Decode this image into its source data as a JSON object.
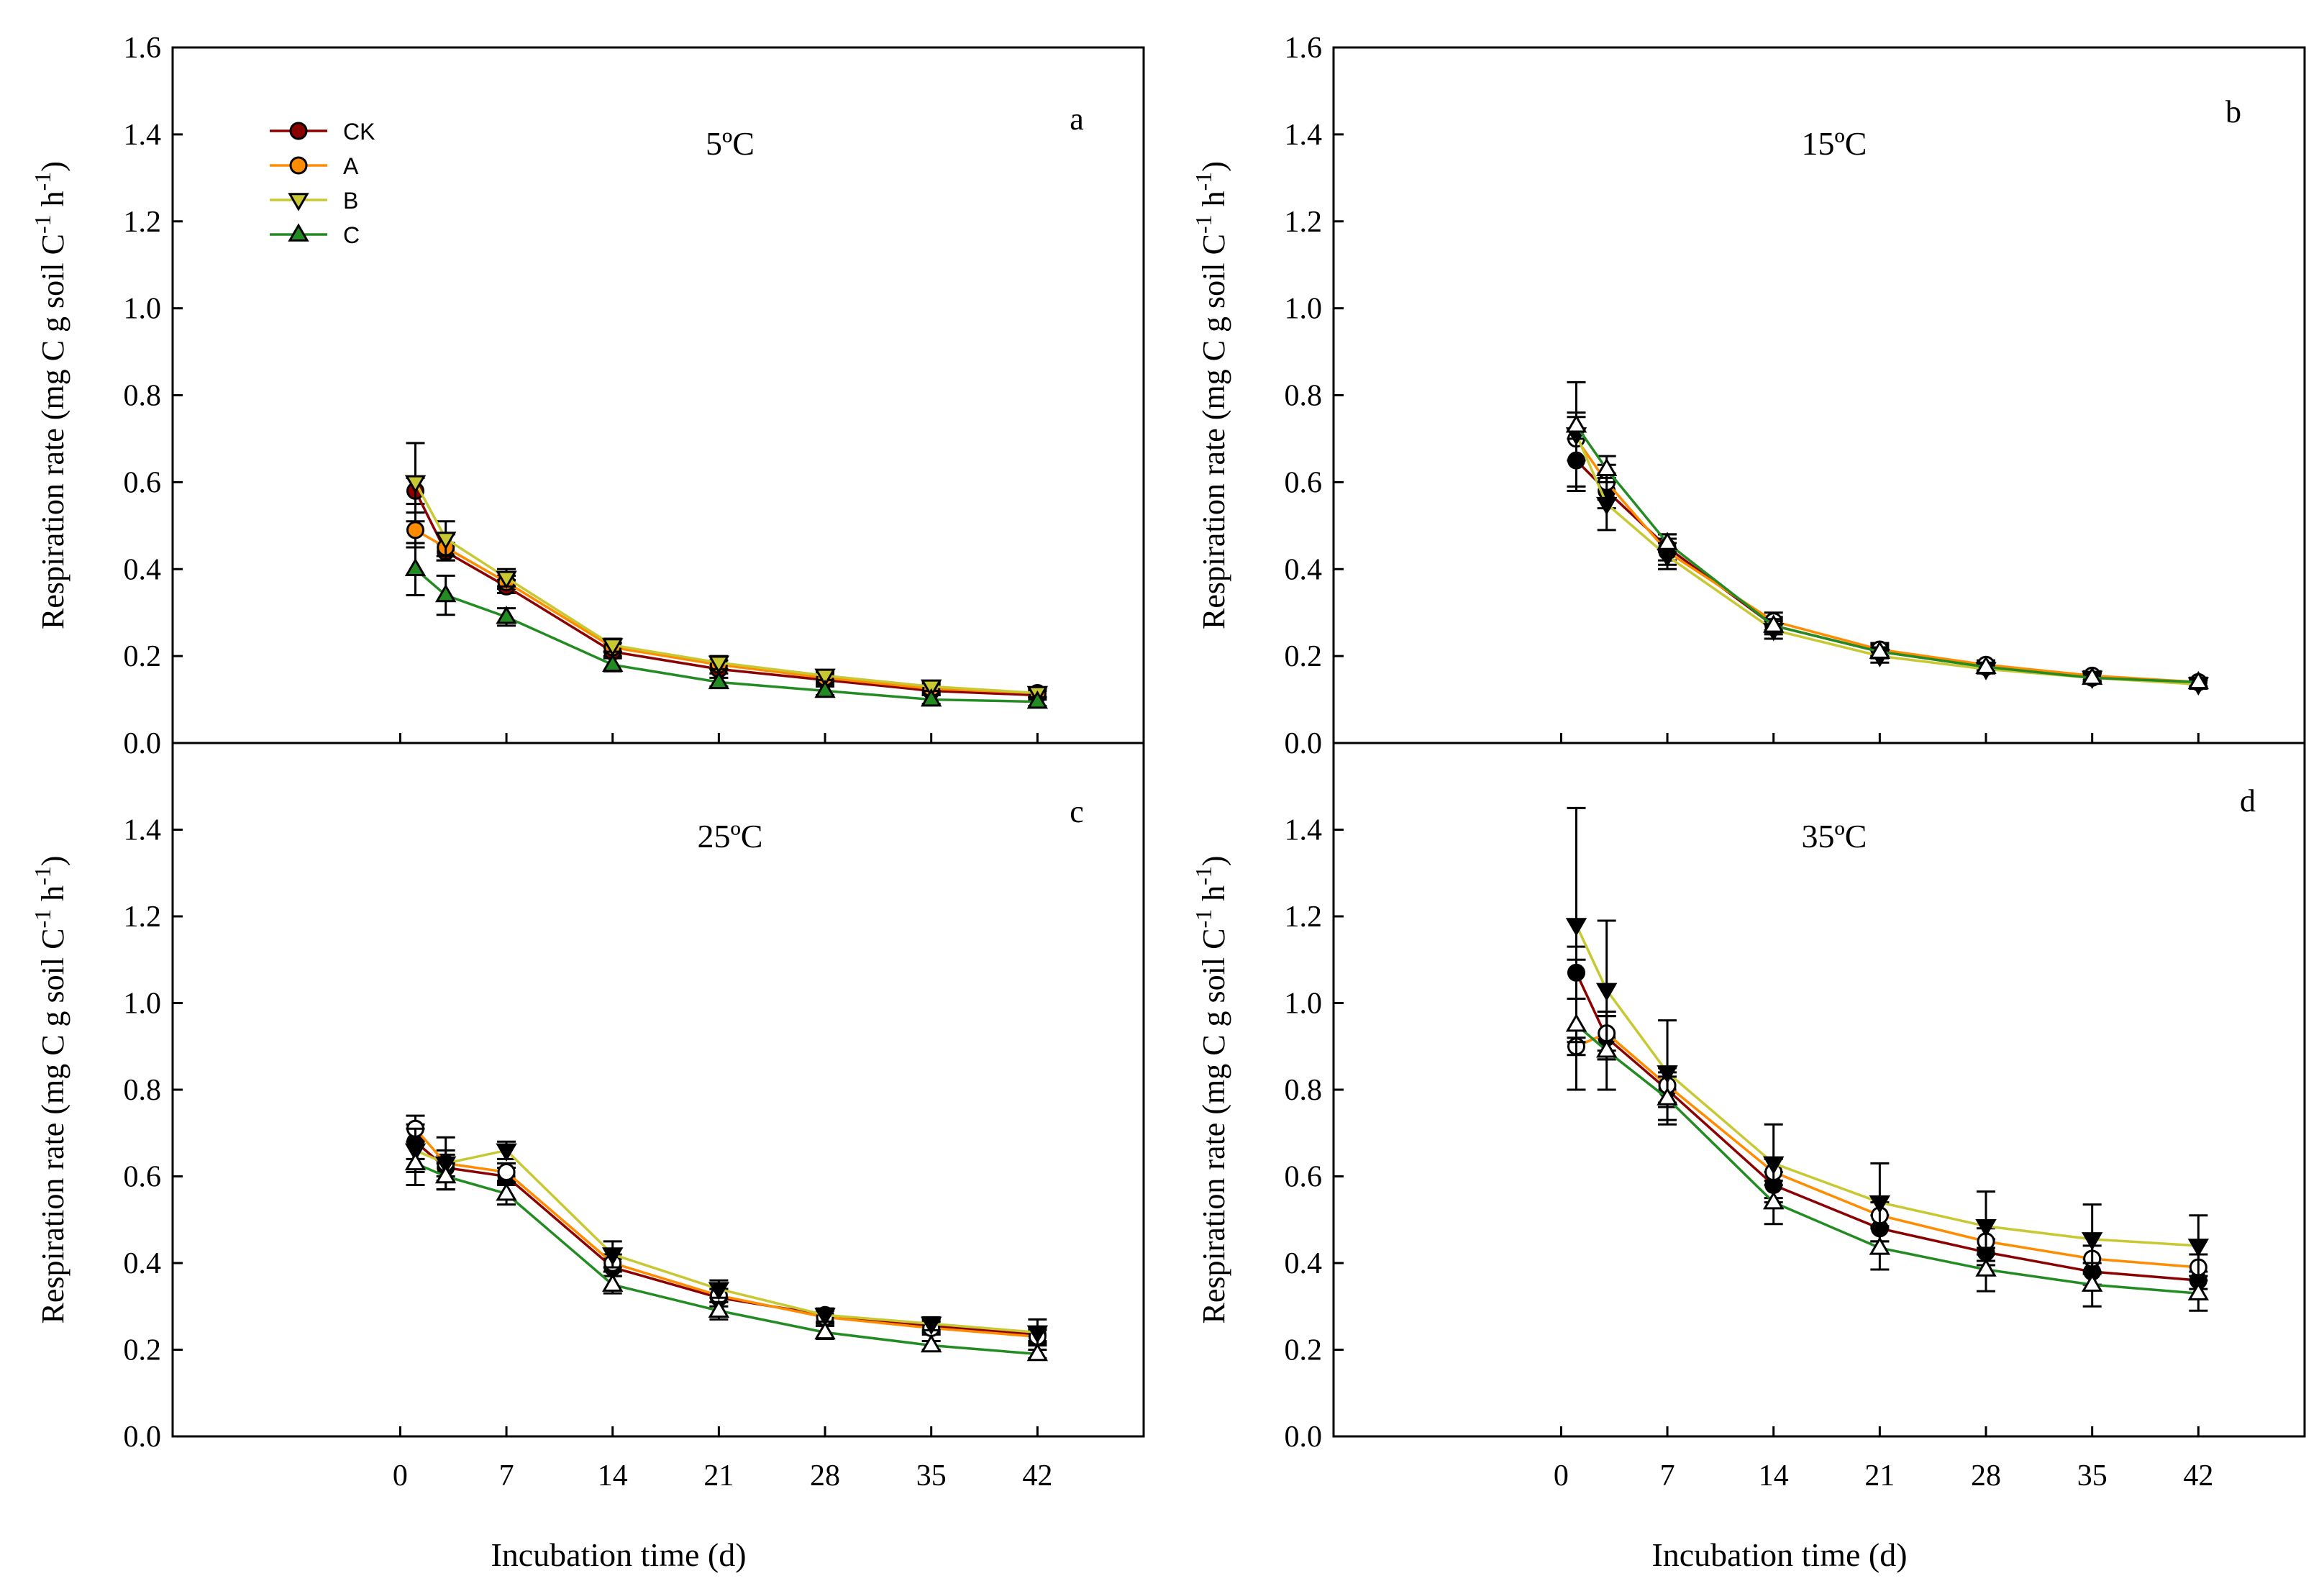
{
  "chart_data": [
    {
      "type": "line",
      "panel": "a",
      "title": "5ºC",
      "xlabel": "Incubation time (d)",
      "ylabel": "Respiration rate (mg C g soil C-1 h-1)",
      "xticks": [
        0,
        7,
        14,
        21,
        28,
        35,
        42
      ],
      "yticks": [
        "0.0",
        "0.2",
        "0.4",
        "0.6",
        "0.8",
        "1.0",
        "1.2",
        "1.4",
        "1.6"
      ],
      "xlim": [
        -15,
        49
      ],
      "ylim": [
        0,
        1.6
      ],
      "legend": "top-left",
      "x": [
        1,
        3,
        7,
        14,
        21,
        28,
        35,
        42
      ],
      "series": [
        {
          "name": "CK",
          "color": "#8b0000",
          "marker": "circle",
          "filled": true,
          "values": [
            0.58,
            0.44,
            0.36,
            0.21,
            0.17,
            0.145,
            0.12,
            0.11
          ],
          "errors": [
            0.03,
            0.02,
            0.015,
            0.01,
            0.01,
            0.01,
            0.01,
            0.01
          ]
        },
        {
          "name": "A",
          "color": "#ff8c00",
          "marker": "circle",
          "filled": true,
          "values": [
            0.49,
            0.45,
            0.37,
            0.22,
            0.18,
            0.15,
            0.125,
            0.115
          ],
          "errors": [
            0.04,
            0.03,
            0.015,
            0.01,
            0.01,
            0.01,
            0.01,
            0.01
          ]
        },
        {
          "name": "B",
          "color": "#c8c832",
          "marker": "triangle-down",
          "filled": true,
          "values": [
            0.6,
            0.47,
            0.38,
            0.225,
            0.185,
            0.155,
            0.13,
            0.115
          ],
          "errors": [
            0.09,
            0.04,
            0.02,
            0.015,
            0.015,
            0.01,
            0.01,
            0.01
          ]
        },
        {
          "name": "C",
          "color": "#228b22",
          "marker": "triangle-up",
          "filled": true,
          "values": [
            0.4,
            0.34,
            0.29,
            0.18,
            0.14,
            0.12,
            0.1,
            0.095
          ],
          "errors": [
            0.06,
            0.045,
            0.02,
            0.015,
            0.01,
            0.01,
            0.01,
            0.01
          ]
        }
      ]
    },
    {
      "type": "line",
      "panel": "b",
      "title": "15ºC",
      "xlabel": "Incubation time (d)",
      "ylabel": "Respiration rate (mg C g soil C-1 h-1)",
      "xticks": [
        0,
        7,
        14,
        21,
        28,
        35,
        42
      ],
      "yticks": [
        "0.0",
        "0.2",
        "0.4",
        "0.6",
        "0.8",
        "1.0",
        "1.2",
        "1.4",
        "1.6"
      ],
      "xlim": [
        -15,
        49
      ],
      "ylim": [
        0,
        1.6
      ],
      "x": [
        1,
        3,
        7,
        14,
        21,
        28,
        35,
        42
      ],
      "series": [
        {
          "name": "CK",
          "color": "#8b0000",
          "marker": "circle",
          "filled": true,
          "values": [
            0.65,
            0.58,
            0.45,
            0.27,
            0.21,
            0.175,
            0.15,
            0.14
          ],
          "errors": [
            0.07,
            0.04,
            0.03,
            0.02,
            0.015,
            0.01,
            0.01,
            0.01
          ]
        },
        {
          "name": "A",
          "color": "#ff8c00",
          "marker": "circle",
          "filled": false,
          "values": [
            0.7,
            0.6,
            0.44,
            0.28,
            0.215,
            0.18,
            0.155,
            0.14
          ],
          "errors": [
            0.05,
            0.04,
            0.03,
            0.02,
            0.015,
            0.01,
            0.01,
            0.01
          ]
        },
        {
          "name": "B",
          "color": "#c8c832",
          "marker": "triangle-down",
          "filled": true,
          "values": [
            0.71,
            0.55,
            0.43,
            0.26,
            0.2,
            0.17,
            0.15,
            0.135
          ],
          "errors": [
            0.12,
            0.06,
            0.03,
            0.02,
            0.015,
            0.01,
            0.01,
            0.01
          ]
        },
        {
          "name": "C",
          "color": "#228b22",
          "marker": "triangle-up",
          "filled": false,
          "values": [
            0.73,
            0.63,
            0.46,
            0.27,
            0.21,
            0.175,
            0.15,
            0.14
          ],
          "errors": [
            0.03,
            0.03,
            0.02,
            0.015,
            0.01,
            0.01,
            0.01,
            0.01
          ]
        }
      ]
    },
    {
      "type": "line",
      "panel": "c",
      "title": "25ºC",
      "xlabel": "Incubation time (d)",
      "ylabel": "Respiration rate (mg C g soil C-1 h-1)",
      "xticks": [
        0,
        7,
        14,
        21,
        28,
        35,
        42
      ],
      "yticks": [
        "0.0",
        "0.2",
        "0.4",
        "0.6",
        "0.8",
        "1.0",
        "1.2",
        "1.4"
      ],
      "xlim": [
        -15,
        49
      ],
      "ylim": [
        0,
        1.6
      ],
      "x": [
        1,
        3,
        7,
        14,
        21,
        28,
        35,
        42
      ],
      "series": [
        {
          "name": "CK",
          "color": "#8b0000",
          "marker": "circle",
          "filled": true,
          "values": [
            0.68,
            0.62,
            0.6,
            0.39,
            0.32,
            0.28,
            0.255,
            0.235
          ],
          "errors": [
            0.04,
            0.03,
            0.02,
            0.02,
            0.02,
            0.015,
            0.015,
            0.015
          ]
        },
        {
          "name": "A",
          "color": "#ff8c00",
          "marker": "circle",
          "filled": false,
          "values": [
            0.71,
            0.63,
            0.61,
            0.4,
            0.325,
            0.275,
            0.25,
            0.23
          ],
          "errors": [
            0.03,
            0.03,
            0.02,
            0.02,
            0.015,
            0.015,
            0.015,
            0.015
          ]
        },
        {
          "name": "B",
          "color": "#c8c832",
          "marker": "triangle-down",
          "filled": true,
          "values": [
            0.66,
            0.63,
            0.66,
            0.42,
            0.34,
            0.28,
            0.26,
            0.24
          ],
          "errors": [
            0.05,
            0.06,
            0.02,
            0.03,
            0.02,
            0.015,
            0.015,
            0.03
          ]
        },
        {
          "name": "C",
          "color": "#228b22",
          "marker": "triangle-up",
          "filled": false,
          "values": [
            0.63,
            0.6,
            0.56,
            0.35,
            0.29,
            0.24,
            0.21,
            0.19
          ],
          "errors": [
            0.05,
            0.03,
            0.025,
            0.02,
            0.02,
            0.015,
            0.01,
            0.01
          ]
        }
      ]
    },
    {
      "type": "line",
      "panel": "d",
      "title": "35ºC",
      "xlabel": "Incubation time (d)",
      "ylabel": "Respiration rate (mg C g soil C-1 h-1)",
      "xticks": [
        0,
        7,
        14,
        21,
        28,
        35,
        42
      ],
      "yticks": [
        "0.0",
        "0.2",
        "0.4",
        "0.6",
        "0.8",
        "1.0",
        "1.2",
        "1.4"
      ],
      "xlim": [
        -15,
        49
      ],
      "ylim": [
        0,
        1.6
      ],
      "x": [
        1,
        3,
        7,
        14,
        21,
        28,
        35,
        42
      ],
      "series": [
        {
          "name": "CK",
          "color": "#8b0000",
          "marker": "circle",
          "filled": true,
          "values": [
            1.07,
            0.92,
            0.8,
            0.58,
            0.48,
            0.425,
            0.38,
            0.36
          ],
          "errors": [
            0.06,
            0.05,
            0.04,
            0.03,
            0.03,
            0.03,
            0.03,
            0.02
          ]
        },
        {
          "name": "A",
          "color": "#ff8c00",
          "marker": "circle",
          "filled": false,
          "values": [
            0.9,
            0.93,
            0.81,
            0.61,
            0.51,
            0.45,
            0.41,
            0.39
          ],
          "errors": [
            0.02,
            0.04,
            0.04,
            0.03,
            0.03,
            0.03,
            0.03,
            0.03
          ]
        },
        {
          "name": "B",
          "color": "#c8c832",
          "marker": "triangle-down",
          "filled": true,
          "values": [
            1.18,
            1.03,
            0.84,
            0.63,
            0.54,
            0.485,
            0.455,
            0.44
          ],
          "errors": [
            0.27,
            0.16,
            0.12,
            0.09,
            0.09,
            0.08,
            0.08,
            0.07
          ]
        },
        {
          "name": "C",
          "color": "#228b22",
          "marker": "triangle-up",
          "filled": false,
          "values": [
            0.95,
            0.89,
            0.78,
            0.54,
            0.435,
            0.385,
            0.35,
            0.33
          ],
          "errors": [
            0.15,
            0.09,
            0.05,
            0.05,
            0.05,
            0.05,
            0.05,
            0.04
          ]
        }
      ]
    }
  ]
}
